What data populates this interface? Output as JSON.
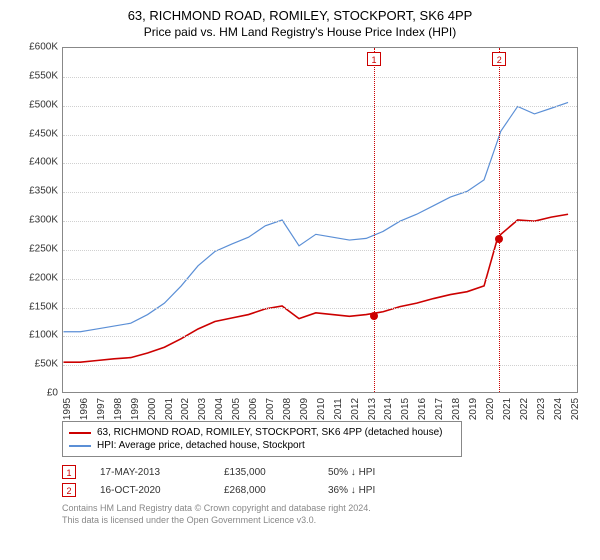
{
  "title": "63, RICHMOND ROAD, ROMILEY, STOCKPORT, SK6 4PP",
  "subtitle": "Price paid vs. HM Land Registry's House Price Index (HPI)",
  "chart": {
    "type": "line",
    "ylim": [
      0,
      600000
    ],
    "ytick_step": 50000,
    "ylabels": [
      "£0",
      "£50K",
      "£100K",
      "£150K",
      "£200K",
      "£250K",
      "£300K",
      "£350K",
      "£400K",
      "£450K",
      "£500K",
      "£550K",
      "£600K"
    ],
    "xlim": [
      1995,
      2025.5
    ],
    "xticks": [
      1995,
      1996,
      1997,
      1998,
      1999,
      2000,
      2001,
      2002,
      2003,
      2004,
      2005,
      2006,
      2007,
      2008,
      2009,
      2010,
      2011,
      2012,
      2013,
      2014,
      2015,
      2016,
      2017,
      2018,
      2019,
      2020,
      2021,
      2022,
      2023,
      2024,
      2025
    ],
    "grid_color": "#d0d0d0",
    "background_color": "#ffffff",
    "series": [
      {
        "name": "HPI: Average price, detached house, Stockport",
        "color": "#5b8fd6",
        "width": 1.2,
        "x": [
          1995,
          1996,
          1997,
          1998,
          1999,
          2000,
          2001,
          2002,
          2003,
          2004,
          2005,
          2006,
          2007,
          2008,
          2009,
          2010,
          2011,
          2012,
          2013,
          2014,
          2015,
          2016,
          2017,
          2018,
          2019,
          2020,
          2021,
          2022,
          2023,
          2024,
          2025
        ],
        "y": [
          105000,
          105000,
          110000,
          115000,
          120000,
          135000,
          155000,
          185000,
          220000,
          245000,
          258000,
          270000,
          290000,
          300000,
          255000,
          275000,
          270000,
          265000,
          268000,
          280000,
          298000,
          310000,
          325000,
          340000,
          350000,
          370000,
          455000,
          498000,
          485000,
          495000,
          505000
        ]
      },
      {
        "name": "63, RICHMOND ROAD, ROMILEY, STOCKPORT, SK6 4PP (detached house)",
        "color": "#cc0000",
        "width": 1.6,
        "x": [
          1995,
          1996,
          1997,
          1998,
          1999,
          2000,
          2001,
          2002,
          2003,
          2004,
          2005,
          2006,
          2007,
          2008,
          2009,
          2010,
          2011,
          2012,
          2013,
          2014,
          2015,
          2016,
          2017,
          2018,
          2019,
          2020,
          2020.8,
          2021,
          2022,
          2023,
          2024,
          2025
        ],
        "y": [
          52000,
          52000,
          55000,
          58000,
          60000,
          68000,
          78000,
          93000,
          110000,
          123000,
          129000,
          135000,
          145000,
          150000,
          128000,
          138000,
          135000,
          132000,
          135000,
          140000,
          149000,
          155000,
          163000,
          170000,
          175000,
          185000,
          268000,
          275000,
          300000,
          298000,
          305000,
          310000
        ]
      }
    ],
    "vlines": [
      {
        "x": 2013.38,
        "label": "1"
      },
      {
        "x": 2020.79,
        "label": "2"
      }
    ],
    "points": [
      {
        "x": 2013.38,
        "y": 135000
      },
      {
        "x": 2020.79,
        "y": 268000
      }
    ]
  },
  "legend_series1": "63, RICHMOND ROAD, ROMILEY, STOCKPORT, SK6 4PP (detached house)",
  "legend_series2": "HPI: Average price, detached house, Stockport",
  "datapoints": [
    {
      "n": "1",
      "date": "17-MAY-2013",
      "price": "£135,000",
      "rel": "50% ↓ HPI"
    },
    {
      "n": "2",
      "date": "16-OCT-2020",
      "price": "£268,000",
      "rel": "36% ↓ HPI"
    }
  ],
  "footer_l1": "Contains HM Land Registry data © Crown copyright and database right 2024.",
  "footer_l2": "This data is licensed under the Open Government Licence v3.0."
}
